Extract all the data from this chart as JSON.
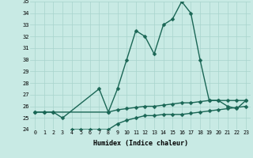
{
  "xlabel": "Humidex (Indice chaleur)",
  "xlim": [
    -0.5,
    23.5
  ],
  "ylim": [
    24,
    35
  ],
  "yticks": [
    24,
    25,
    26,
    27,
    28,
    29,
    30,
    31,
    32,
    33,
    34,
    35
  ],
  "xticks": [
    0,
    1,
    2,
    3,
    4,
    5,
    6,
    7,
    8,
    9,
    10,
    11,
    12,
    13,
    14,
    15,
    16,
    17,
    18,
    19,
    20,
    21,
    22,
    23
  ],
  "bg_color": "#c8eae4",
  "grid_color": "#a8d4cc",
  "line_color": "#1a6655",
  "line_width": 1.0,
  "marker": "D",
  "marker_size": 2.5,
  "upper_line": [
    25.5,
    25.5,
    25.5,
    25.0,
    null,
    null,
    null,
    27.5,
    25.5,
    27.5,
    30.0,
    32.5,
    32.0,
    30.5,
    33.0,
    33.5,
    35.0,
    34.0,
    30.0,
    26.5,
    26.5,
    26.0,
    25.8,
    26.5
  ],
  "middle_line": [
    25.5,
    25.5,
    25.5,
    null,
    null,
    null,
    null,
    null,
    25.5,
    25.7,
    25.8,
    25.9,
    26.0,
    26.0,
    26.1,
    26.2,
    26.3,
    26.3,
    26.4,
    26.5,
    26.5,
    26.5,
    26.5,
    26.5
  ],
  "lower_line": [
    null,
    null,
    null,
    null,
    24.0,
    24.0,
    24.0,
    24.0,
    24.0,
    24.5,
    24.8,
    25.0,
    25.2,
    25.2,
    25.3,
    25.3,
    25.3,
    25.4,
    25.5,
    25.6,
    25.7,
    25.8,
    25.9,
    26.0
  ]
}
